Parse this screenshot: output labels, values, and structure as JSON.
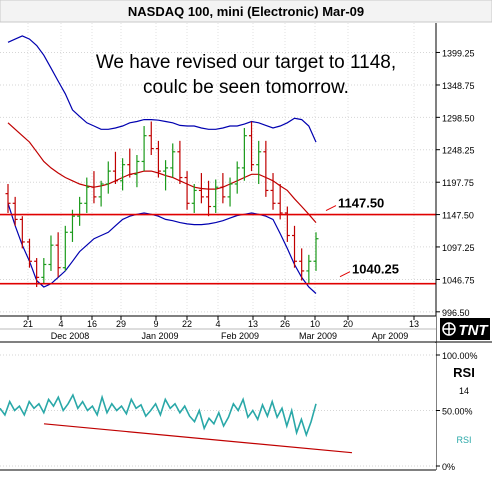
{
  "chart_data": {
    "type": "line",
    "title": "NASDAQ 100, mini (Electronic) Mar-09",
    "annotation_line1": "We have revised our target to 1148,",
    "annotation_line2": "coulc be seen tomorrow.",
    "price_panel": {
      "ylim": [
        990,
        1445
      ],
      "y_ticks": [
        "1399.25",
        "1348.75",
        "1298.50",
        "1248.25",
        "1197.75",
        "1147.50",
        "1097.25",
        "1046.75",
        "996.50"
      ],
      "horizontal_levels": [
        {
          "label": "1147.50",
          "value": 1147.5,
          "color": "#e00000"
        },
        {
          "label": "1040.25",
          "value": 1040.25,
          "color": "#e00000"
        }
      ],
      "ohlc": [
        [
          1180,
          1195,
          1150,
          1165
        ],
        [
          1165,
          1175,
          1130,
          1140
        ],
        [
          1140,
          1145,
          1095,
          1105
        ],
        [
          1105,
          1110,
          1065,
          1075
        ],
        [
          1075,
          1080,
          1035,
          1050
        ],
        [
          1050,
          1080,
          1040,
          1070
        ],
        [
          1070,
          1115,
          1060,
          1100
        ],
        [
          1100,
          1120,
          1050,
          1065
        ],
        [
          1065,
          1130,
          1060,
          1120
        ],
        [
          1120,
          1155,
          1105,
          1145
        ],
        [
          1145,
          1175,
          1130,
          1165
        ],
        [
          1165,
          1205,
          1150,
          1190
        ],
        [
          1190,
          1215,
          1165,
          1175
        ],
        [
          1175,
          1200,
          1160,
          1195
        ],
        [
          1195,
          1230,
          1180,
          1215
        ],
        [
          1215,
          1245,
          1195,
          1200
        ],
        [
          1200,
          1235,
          1185,
          1225
        ],
        [
          1225,
          1250,
          1205,
          1210
        ],
        [
          1210,
          1240,
          1190,
          1230
        ],
        [
          1230,
          1285,
          1215,
          1270
        ],
        [
          1270,
          1292,
          1240,
          1250
        ],
        [
          1250,
          1262,
          1205,
          1215
        ],
        [
          1215,
          1232,
          1185,
          1220
        ],
        [
          1220,
          1258,
          1205,
          1245
        ],
        [
          1245,
          1262,
          1195,
          1205
        ],
        [
          1205,
          1215,
          1155,
          1165
        ],
        [
          1165,
          1195,
          1150,
          1185
        ],
        [
          1185,
          1212,
          1165,
          1175
        ],
        [
          1175,
          1200,
          1145,
          1160
        ],
        [
          1160,
          1202,
          1150,
          1190
        ],
        [
          1190,
          1212,
          1165,
          1175
        ],
        [
          1175,
          1205,
          1160,
          1195
        ],
        [
          1195,
          1230,
          1180,
          1220
        ],
        [
          1220,
          1282,
          1200,
          1270
        ],
        [
          1270,
          1292,
          1215,
          1225
        ],
        [
          1225,
          1262,
          1195,
          1245
        ],
        [
          1245,
          1262,
          1175,
          1185
        ],
        [
          1185,
          1212,
          1155,
          1165
        ],
        [
          1165,
          1195,
          1140,
          1150
        ],
        [
          1150,
          1160,
          1105,
          1115
        ],
        [
          1115,
          1130,
          1065,
          1075
        ],
        [
          1075,
          1095,
          1045,
          1060
        ],
        [
          1060,
          1085,
          1040,
          1075
        ],
        [
          1075,
          1120,
          1060,
          1110
        ]
      ],
      "bollinger_upper": [
        1415,
        1420,
        1425,
        1420,
        1410,
        1395,
        1375,
        1355,
        1335,
        1310,
        1300,
        1290,
        1285,
        1280,
        1280,
        1282,
        1285,
        1290,
        1292,
        1295,
        1295,
        1294,
        1292,
        1290,
        1286,
        1285,
        1285,
        1282,
        1280,
        1280,
        1282,
        1285,
        1285,
        1288,
        1292,
        1290,
        1286,
        1282,
        1285,
        1290,
        1297,
        1295,
        1285,
        1260
      ],
      "bollinger_middle": [
        1290,
        1280,
        1270,
        1260,
        1245,
        1230,
        1220,
        1212,
        1205,
        1200,
        1195,
        1192,
        1190,
        1192,
        1195,
        1200,
        1205,
        1210,
        1212,
        1215,
        1215,
        1212,
        1208,
        1205,
        1200,
        1195,
        1190,
        1188,
        1187,
        1187,
        1190,
        1195,
        1200,
        1205,
        1210,
        1210,
        1205,
        1200,
        1192,
        1185,
        1172,
        1160,
        1148,
        1135
      ],
      "bollinger_lower": [
        1165,
        1130,
        1100,
        1075,
        1045,
        1035,
        1040,
        1050,
        1060,
        1075,
        1090,
        1100,
        1110,
        1115,
        1120,
        1130,
        1140,
        1145,
        1148,
        1150,
        1148,
        1145,
        1140,
        1138,
        1135,
        1133,
        1132,
        1132,
        1133,
        1135,
        1138,
        1142,
        1146,
        1148,
        1150,
        1148,
        1145,
        1140,
        1118,
        1095,
        1070,
        1050,
        1035,
        1025
      ]
    },
    "x_axis": {
      "day_labels": [
        "21",
        "4",
        "16",
        "29",
        "9",
        "22",
        "4",
        "13",
        "26",
        "10",
        "20",
        "13"
      ],
      "month_labels": [
        "Dec 2008",
        "Jan 2009",
        "Feb 2009",
        "Mar 2009",
        "Apr 2009"
      ]
    },
    "rsi_panel": {
      "label": "RSI",
      "period": "14",
      "series_name": "RSI",
      "y_ticks": [
        "100.00%",
        "50.00%",
        "0%"
      ],
      "ylim": [
        0,
        100
      ],
      "values": [
        52,
        46,
        58,
        50,
        54,
        46,
        58,
        52,
        56,
        48,
        60,
        54,
        62,
        50,
        56,
        64,
        52,
        58,
        50,
        54,
        46,
        62,
        48,
        56,
        50,
        54,
        47,
        60,
        52,
        55,
        45,
        50,
        56,
        46,
        60,
        52,
        56,
        48,
        54,
        45,
        40,
        50,
        34,
        43,
        38,
        48,
        36,
        44,
        56,
        50,
        60,
        44,
        50,
        42,
        55,
        45,
        58,
        44,
        52,
        36,
        50,
        30,
        42,
        28,
        40,
        56
      ],
      "trendline": {
        "start": [
          0,
          38
        ],
        "end": [
          1,
          12
        ]
      }
    },
    "logo_text": "TNT"
  }
}
